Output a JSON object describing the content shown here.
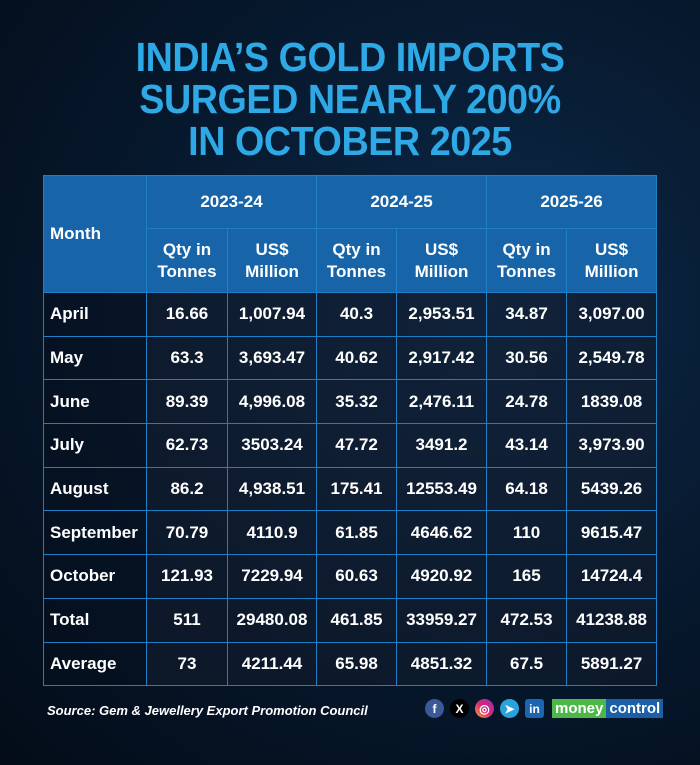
{
  "title": [
    "INDIA’S GOLD IMPORTS",
    "SURGED NEARLY 200%",
    "IN OCTOBER 2025"
  ],
  "chart_data": {
    "type": "table",
    "title": "INDIA’S GOLD IMPORTS SURGED NEARLY 200% IN OCTOBER 2025",
    "month_header": "Month",
    "years": [
      "2023-24",
      "2024-25",
      "2025-26"
    ],
    "subheaders": [
      "Qty in Tonnes",
      "US$ Million"
    ],
    "rows": [
      {
        "month": "April",
        "values": [
          "16.66",
          "1,007.94",
          "40.3",
          "2,953.51",
          "34.87",
          "3,097.00"
        ]
      },
      {
        "month": "May",
        "values": [
          "63.3",
          "3,693.47",
          "40.62",
          "2,917.42",
          "30.56",
          "2,549.78"
        ]
      },
      {
        "month": "June",
        "values": [
          "89.39",
          "4,996.08",
          "35.32",
          "2,476.11",
          "24.78",
          "1839.08"
        ]
      },
      {
        "month": "July",
        "values": [
          "62.73",
          "3503.24",
          "47.72",
          "3491.2",
          "43.14",
          "3,973.90"
        ]
      },
      {
        "month": "August",
        "values": [
          "86.2",
          "4,938.51",
          "175.41",
          "12553.49",
          "64.18",
          "5439.26"
        ]
      },
      {
        "month": "September",
        "values": [
          "70.79",
          "4110.9",
          "61.85",
          "4646.62",
          "110",
          "9615.47"
        ]
      },
      {
        "month": "October",
        "values": [
          "121.93",
          "7229.94",
          "60.63",
          "4920.92",
          "165",
          "14724.4"
        ]
      },
      {
        "month": "Total",
        "values": [
          "511",
          "29480.08",
          "461.85",
          "33959.27",
          "472.53",
          "41238.88"
        ]
      },
      {
        "month": "Average",
        "values": [
          "73",
          "4211.44",
          "65.98",
          "4851.32",
          "67.5",
          "5891.27"
        ]
      }
    ]
  },
  "footer": {
    "source": "Source: Gem & Jewellery Export Promotion Council",
    "social": [
      "facebook",
      "x",
      "instagram",
      "telegram",
      "linkedin"
    ],
    "logo_a": "money",
    "logo_b": "control"
  },
  "colors": {
    "title": "#2ea9e6",
    "header": "#1765a8",
    "grid": "#1f7ec4"
  }
}
